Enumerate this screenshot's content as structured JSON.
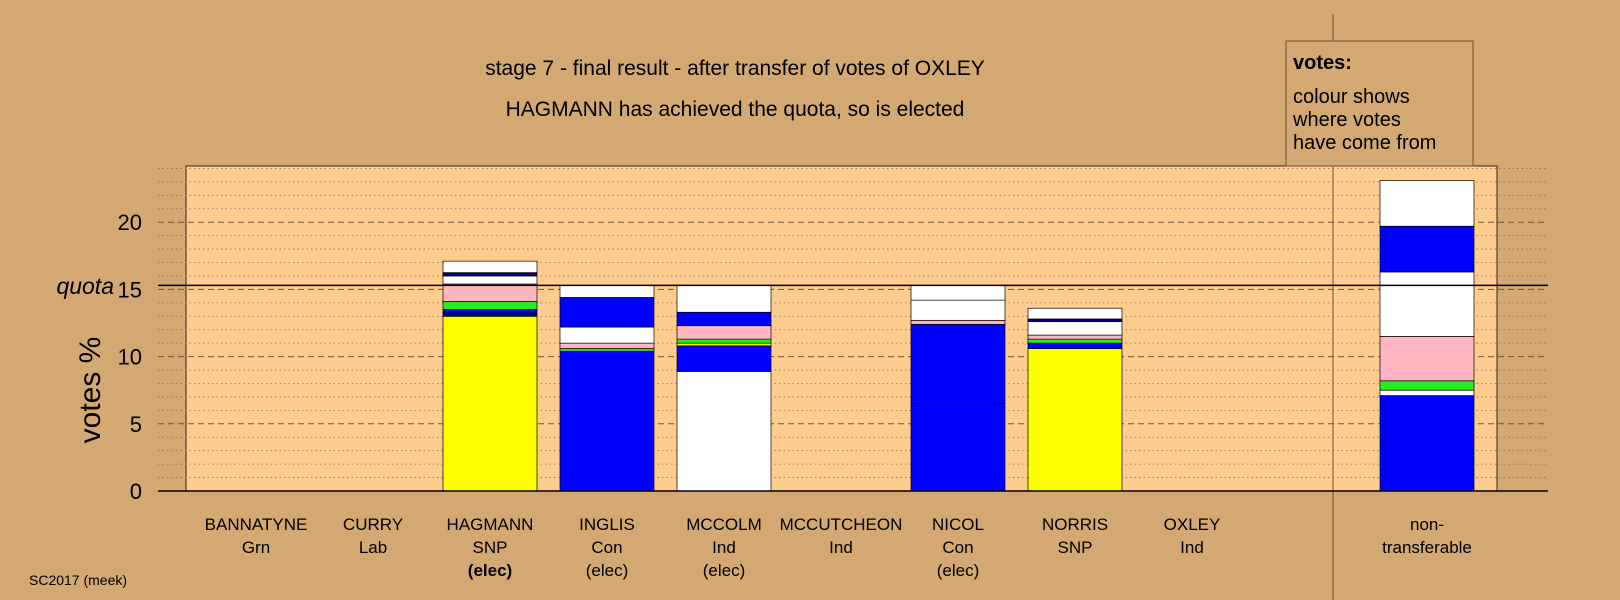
{
  "chart_data": {
    "type": "bar",
    "stacked": true,
    "title": "stage 7 - final result - after transfer of votes of OXLEY",
    "subtitle": "HAGMANN has achieved the quota, so is elected",
    "ylabel": "votes %",
    "ylim": [
      0,
      24
    ],
    "yticks": [
      0,
      5,
      10,
      15,
      20
    ],
    "quota": 15.3,
    "quota_label": "quota",
    "grid": "dashed major every 5, dotted minor every 1",
    "legend": {
      "title": "votes:",
      "lines": [
        "colour shows",
        "where votes",
        "have come from"
      ]
    },
    "footer": "SC2017 (meek)",
    "colors": {
      "Con": "#0000FF",
      "SNP": "#FFFF00",
      "Ind": "#FFFFFF",
      "Grn": "#22EE22",
      "Lab": "#FFB6C1",
      "navy": "#000080",
      "background": "#D4A872",
      "plot": "#FFCC90"
    },
    "candidates": [
      {
        "name": "BANNATYNE",
        "party": "Grn",
        "status": "",
        "segments": []
      },
      {
        "name": "CURRY",
        "party": "Lab",
        "status": "",
        "segments": []
      },
      {
        "name": "HAGMANN",
        "party": "SNP",
        "status": "(elec)",
        "bold_status": true,
        "segments": [
          {
            "value": 13.0,
            "color": "#FFFF00"
          },
          {
            "value": 0.25,
            "color": "#000080"
          },
          {
            "value": 0.25,
            "color": "#0000FF"
          },
          {
            "value": 0.6,
            "color": "#22EE22"
          },
          {
            "value": 1.3,
            "color": "#FFB6C1"
          },
          {
            "value": 0.6,
            "color": "#FFFFFF"
          },
          {
            "value": 0.25,
            "color": "#000080"
          },
          {
            "value": 0.85,
            "color": "#FFFFFF"
          }
        ]
      },
      {
        "name": "INGLIS",
        "party": "Con",
        "status": "(elec)",
        "segments": [
          {
            "value": 10.4,
            "color": "#0000FF"
          },
          {
            "value": 0.2,
            "color": "#22EE22"
          },
          {
            "value": 0.4,
            "color": "#FFB6C1"
          },
          {
            "value": 1.2,
            "color": "#FFFFFF"
          },
          {
            "value": 2.2,
            "color": "#0000FF"
          },
          {
            "value": 0.9,
            "color": "#FFFFFF"
          }
        ]
      },
      {
        "name": "MCCOLM",
        "party": "Ind",
        "status": "(elec)",
        "segments": [
          {
            "value": 8.9,
            "color": "#FFFFFF"
          },
          {
            "value": 1.9,
            "color": "#0000FF"
          },
          {
            "value": 0.2,
            "color": "#FFFF00"
          },
          {
            "value": 0.3,
            "color": "#22EE22"
          },
          {
            "value": 1.0,
            "color": "#FFB6C1"
          },
          {
            "value": 1.0,
            "color": "#0000FF"
          },
          {
            "value": 2.0,
            "color": "#FFFFFF"
          }
        ]
      },
      {
        "name": "MCCUTCHEON",
        "party": "Ind",
        "status": "",
        "segments": []
      },
      {
        "name": "NICOL",
        "party": "Con",
        "status": "(elec)",
        "segments": [
          {
            "value": 6.5,
            "color": "#0000FF"
          },
          {
            "value": 5.9,
            "color": "#0000FF"
          },
          {
            "value": 0.3,
            "color": "#FFB6C1"
          },
          {
            "value": 1.5,
            "color": "#FFFFFF"
          },
          {
            "value": 1.1,
            "color": "#FFFFFF"
          }
        ]
      },
      {
        "name": "NORRIS",
        "party": "SNP",
        "status": "",
        "segments": [
          {
            "value": 10.6,
            "color": "#FFFF00"
          },
          {
            "value": 0.4,
            "color": "#0000FF"
          },
          {
            "value": 0.3,
            "color": "#22EE22"
          },
          {
            "value": 0.3,
            "color": "#FFB6C1"
          },
          {
            "value": 1.0,
            "color": "#FFFFFF"
          },
          {
            "value": 0.2,
            "color": "#000080"
          },
          {
            "value": 0.8,
            "color": "#FFFFFF"
          }
        ]
      },
      {
        "name": "OXLEY",
        "party": "Ind",
        "status": "",
        "segments": []
      }
    ],
    "nontransferable": {
      "label_lines": [
        "non-",
        "transferable"
      ],
      "segments": [
        {
          "value": 7.1,
          "color": "#0000FF"
        },
        {
          "value": 0.4,
          "color": "#FFFFFF"
        },
        {
          "value": 0.7,
          "color": "#22EE22"
        },
        {
          "value": 3.3,
          "color": "#FFB6C1"
        },
        {
          "value": 4.8,
          "color": "#FFFFFF"
        },
        {
          "value": 3.4,
          "color": "#0000FF"
        },
        {
          "value": 3.4,
          "color": "#FFFFFF"
        }
      ]
    }
  }
}
